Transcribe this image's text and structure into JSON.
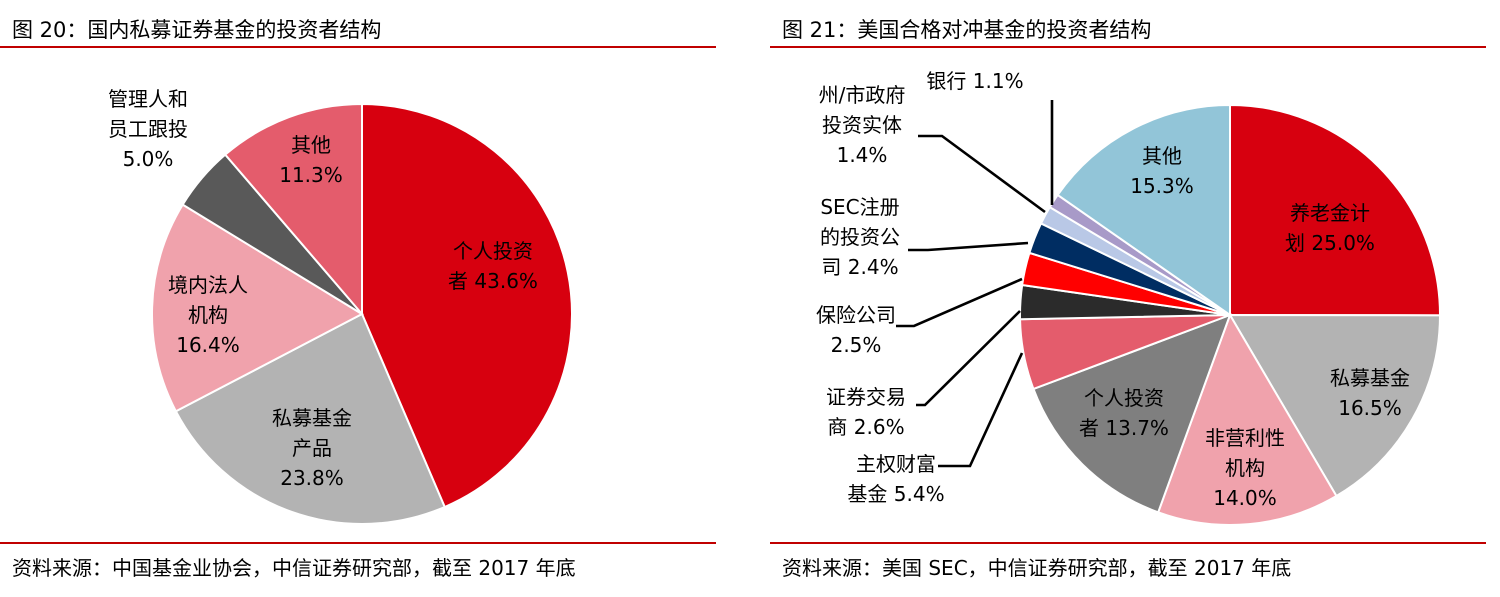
{
  "charts": [
    {
      "id": "left",
      "figure_title": "图 20：国内私募证券基金的投资者结构",
      "source": "资料来源：中国基金业协会，中信证券研究部，截至 2017 年底"
    },
    {
      "id": "right",
      "figure_title": "图 21：美国合格对冲基金的投资者结构",
      "source": "资料来源：美国 SEC，中信证券研究部，截至 2017 年底"
    }
  ],
  "chart_data": [
    {
      "type": "pie",
      "title": "图 20：国内私募证券基金的投资者结构",
      "legend": "none",
      "slices": [
        {
          "name": "个人投资者",
          "value": 43.6,
          "label_lines": [
            "个人投资",
            "者 43.6%"
          ],
          "color": "#d7000f",
          "text_color": "#000000",
          "label_placement": "inside"
        },
        {
          "name": "私募基金产品",
          "value": 23.8,
          "label_lines": [
            "私募基金",
            "产品",
            "23.8%"
          ],
          "color": "#b3b3b3",
          "text_color": "#000000",
          "label_placement": "inside"
        },
        {
          "name": "境内法人机构",
          "value": 16.4,
          "label_lines": [
            "境内法人",
            "机构",
            "16.4%"
          ],
          "color": "#f0a2ac",
          "text_color": "#000000",
          "label_placement": "inside"
        },
        {
          "name": "管理人和员工跟投",
          "value": 5.0,
          "label_lines": [
            "管理人和",
            "员工跟投",
            "5.0%"
          ],
          "color": "#595959",
          "text_color": "#000000",
          "label_placement": "outside"
        },
        {
          "name": "其他",
          "value": 11.3,
          "label_lines": [
            "其他",
            "11.3%"
          ],
          "color": "#e45c6c",
          "text_color": "#000000",
          "label_placement": "inside"
        }
      ]
    },
    {
      "type": "pie",
      "title": "图 21：美国合格对冲基金的投资者结构",
      "legend": "none",
      "slices": [
        {
          "name": "养老金计划",
          "value": 25.0,
          "label_lines": [
            "养老金计",
            "划 25.0%"
          ],
          "color": "#d7000f",
          "text_color": "#000000",
          "label_placement": "inside"
        },
        {
          "name": "私募基金",
          "value": 16.5,
          "label_lines": [
            "私募基金",
            "16.5%"
          ],
          "color": "#b3b3b3",
          "text_color": "#000000",
          "label_placement": "inside"
        },
        {
          "name": "非营利性机构",
          "value": 14.0,
          "label_lines": [
            "非营利性",
            "机构",
            "14.0%"
          ],
          "color": "#f0a2ac",
          "text_color": "#000000",
          "label_placement": "inside"
        },
        {
          "name": "个人投资者",
          "value": 13.7,
          "label_lines": [
            "个人投资",
            "者 13.7%"
          ],
          "color": "#7f7f7f",
          "text_color": "#000000",
          "label_placement": "inside"
        },
        {
          "name": "主权财富基金",
          "value": 5.4,
          "label_lines": [
            "主权财富",
            "基金 5.4%"
          ],
          "color": "#e45c6c",
          "text_color": "#000000",
          "label_placement": "outside"
        },
        {
          "name": "证券交易商",
          "value": 2.6,
          "label_lines": [
            "证券交易",
            "商 2.6%"
          ],
          "color": "#2b2b2b",
          "text_color": "#000000",
          "label_placement": "outside"
        },
        {
          "name": "保险公司",
          "value": 2.5,
          "label_lines": [
            "保险公司",
            "2.5%"
          ],
          "color": "#ff0000",
          "text_color": "#000000",
          "label_placement": "outside"
        },
        {
          "name": "SEC注册的投资公司",
          "value": 2.4,
          "label_lines": [
            "SEC注册",
            "的投资公",
            "司 2.4%"
          ],
          "color": "#002d62",
          "text_color": "#000000",
          "label_placement": "outside"
        },
        {
          "name": "州/市政府投资实体",
          "value": 1.4,
          "label_lines": [
            "州/市政府",
            "投资实体",
            "1.4%"
          ],
          "color": "#b9c8e6",
          "text_color": "#000000",
          "label_placement": "outside"
        },
        {
          "name": "银行",
          "value": 1.1,
          "label_lines": [
            "银行 1.1%"
          ],
          "color": "#a89ac8",
          "text_color": "#000000",
          "label_placement": "outside"
        },
        {
          "name": "其他",
          "value": 15.3,
          "label_lines": [
            "其他",
            "15.3%"
          ],
          "color": "#92c5d8",
          "text_color": "#000000",
          "label_placement": "inside"
        }
      ]
    }
  ]
}
